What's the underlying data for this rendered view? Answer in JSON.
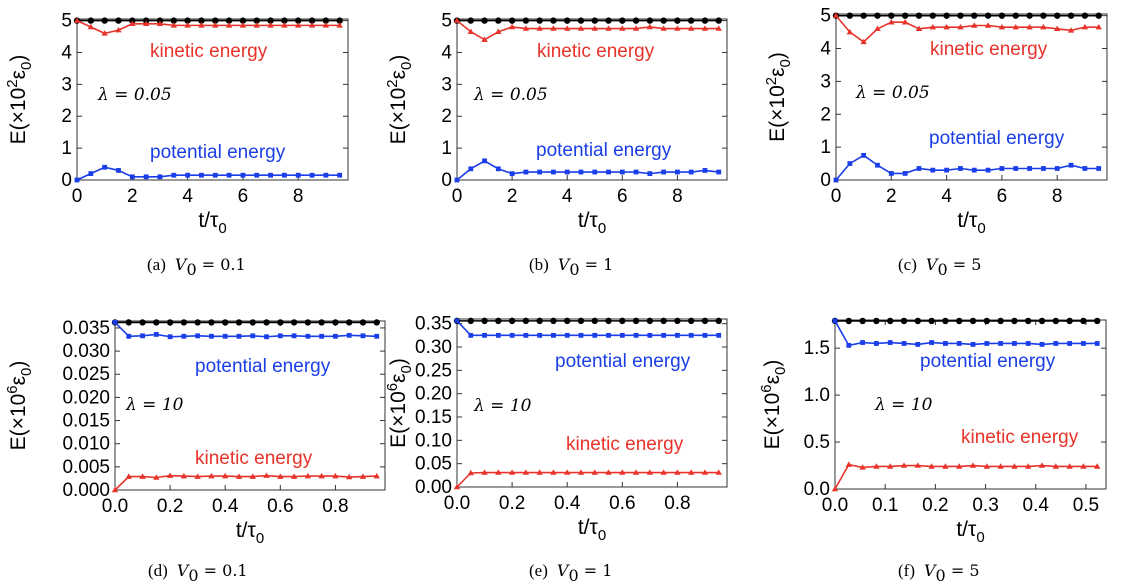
{
  "chart_data": [
    {
      "type": "line",
      "caption": {
        "label": "(a)",
        "var": "V",
        "sub": "0",
        "rest": " = 0.1"
      },
      "xlabel": {
        "main": "t/τ",
        "sub": "0"
      },
      "ylabel": {
        "main": "E(×10",
        "sup": "2",
        "eps": "ε",
        "sub": "0",
        "close": ")"
      },
      "xlim": [
        0,
        9.8
      ],
      "ylim": [
        0,
        5.05
      ],
      "xticks": [
        0,
        2,
        4,
        6,
        8
      ],
      "xtick_labels": [
        "0",
        "2",
        "4",
        "6",
        "8"
      ],
      "yticks": [
        0,
        1,
        2,
        3,
        4,
        5
      ],
      "ytick_labels": [
        "0",
        "1",
        "2",
        "3",
        "4",
        "5"
      ],
      "lambda_label": "λ = 0.05",
      "x": [
        0,
        0.5,
        1,
        1.5,
        2,
        2.5,
        3,
        3.5,
        4,
        4.5,
        5,
        5.5,
        6,
        6.5,
        7,
        7.5,
        8,
        8.5,
        9,
        9.5
      ],
      "series": [
        {
          "name": "",
          "color": "#000000",
          "marker": "circle",
          "values": [
            5,
            5,
            5,
            5,
            5,
            5,
            5,
            5,
            5,
            5,
            5,
            5,
            5,
            5,
            5,
            5,
            5,
            5,
            5,
            5
          ]
        },
        {
          "name": "kinetic energy",
          "color": "#e8332a",
          "marker": "triangle",
          "values": [
            5.0,
            4.8,
            4.6,
            4.7,
            4.9,
            4.9,
            4.9,
            4.85,
            4.85,
            4.85,
            4.85,
            4.85,
            4.85,
            4.85,
            4.85,
            4.85,
            4.85,
            4.85,
            4.85,
            4.85
          ]
        },
        {
          "name": "potential energy",
          "color": "#1a3ee8",
          "marker": "square",
          "values": [
            0.0,
            0.2,
            0.4,
            0.3,
            0.1,
            0.1,
            0.1,
            0.15,
            0.15,
            0.15,
            0.15,
            0.15,
            0.15,
            0.15,
            0.15,
            0.15,
            0.15,
            0.15,
            0.15,
            0.15
          ]
        }
      ]
    },
    {
      "type": "line",
      "caption": {
        "label": "(b)",
        "var": "V",
        "sub": "0",
        "rest": " = 1"
      },
      "xlabel": {
        "main": "t/τ",
        "sub": "0"
      },
      "ylabel": {
        "main": "E(×10",
        "sup": "2",
        "eps": "ε",
        "sub": "0",
        "close": ")"
      },
      "xlim": [
        0,
        9.8
      ],
      "ylim": [
        0,
        5.05
      ],
      "xticks": [
        0,
        2,
        4,
        6,
        8
      ],
      "xtick_labels": [
        "0",
        "2",
        "4",
        "6",
        "8"
      ],
      "yticks": [
        0,
        1,
        2,
        3,
        4,
        5
      ],
      "ytick_labels": [
        "0",
        "1",
        "2",
        "3",
        "4",
        "5"
      ],
      "lambda_label": "λ = 0.05",
      "x": [
        0,
        0.5,
        1,
        1.5,
        2,
        2.5,
        3,
        3.5,
        4,
        4.5,
        5,
        5.5,
        6,
        6.5,
        7,
        7.5,
        8,
        8.5,
        9,
        9.5
      ],
      "series": [
        {
          "name": "",
          "color": "#000000",
          "marker": "circle",
          "values": [
            5,
            5,
            5,
            5,
            5,
            5,
            5,
            5,
            5,
            5,
            5,
            5,
            5,
            5,
            5,
            5,
            5,
            5,
            5,
            5
          ]
        },
        {
          "name": "kinetic energy",
          "color": "#e8332a",
          "marker": "triangle",
          "values": [
            5.0,
            4.65,
            4.4,
            4.65,
            4.8,
            4.75,
            4.75,
            4.75,
            4.75,
            4.75,
            4.75,
            4.75,
            4.75,
            4.75,
            4.8,
            4.75,
            4.75,
            4.75,
            4.75,
            4.75
          ]
        },
        {
          "name": "potential energy",
          "color": "#1a3ee8",
          "marker": "square",
          "values": [
            0.0,
            0.35,
            0.6,
            0.35,
            0.2,
            0.25,
            0.25,
            0.25,
            0.25,
            0.25,
            0.25,
            0.25,
            0.25,
            0.25,
            0.2,
            0.25,
            0.25,
            0.25,
            0.3,
            0.25
          ]
        }
      ]
    },
    {
      "type": "line",
      "caption": {
        "label": "(c)",
        "var": "V",
        "sub": "0",
        "rest": " = 5"
      },
      "xlabel": {
        "main": "t/τ",
        "sub": "0"
      },
      "ylabel": {
        "main": "E(×10",
        "sup": "2",
        "eps": "ε",
        "sub": "0",
        "close": ")"
      },
      "xlim": [
        0,
        9.8
      ],
      "ylim": [
        0,
        5.05
      ],
      "xticks": [
        0,
        2,
        4,
        6,
        8
      ],
      "xtick_labels": [
        "0",
        "2",
        "4",
        "6",
        "8"
      ],
      "yticks": [
        0,
        1,
        2,
        3,
        4,
        5
      ],
      "ytick_labels": [
        "0",
        "1",
        "2",
        "3",
        "4",
        "5"
      ],
      "lambda_label": "λ = 0.05",
      "x": [
        0,
        0.5,
        1,
        1.5,
        2,
        2.5,
        3,
        3.5,
        4,
        4.5,
        5,
        5.5,
        6,
        6.5,
        7,
        7.5,
        8,
        8.5,
        9,
        9.5
      ],
      "series": [
        {
          "name": "",
          "color": "#000000",
          "marker": "circle",
          "values": [
            5,
            5,
            5,
            5,
            5,
            5,
            5,
            5,
            5,
            5,
            5,
            5,
            5,
            5,
            5,
            5,
            5,
            5,
            5,
            5
          ]
        },
        {
          "name": "kinetic energy",
          "color": "#e8332a",
          "marker": "triangle",
          "values": [
            5.0,
            4.5,
            4.2,
            4.6,
            4.8,
            4.8,
            4.6,
            4.65,
            4.65,
            4.65,
            4.7,
            4.7,
            4.65,
            4.65,
            4.65,
            4.65,
            4.6,
            4.55,
            4.65,
            4.65
          ]
        },
        {
          "name": "potential energy",
          "color": "#1a3ee8",
          "marker": "square",
          "values": [
            0.0,
            0.5,
            0.75,
            0.45,
            0.2,
            0.2,
            0.35,
            0.3,
            0.3,
            0.35,
            0.3,
            0.3,
            0.35,
            0.35,
            0.35,
            0.35,
            0.35,
            0.45,
            0.35,
            0.35
          ]
        }
      ]
    },
    {
      "type": "line",
      "caption": {
        "label": "(d)",
        "var": "V",
        "sub": "0",
        "rest": " = 0.1"
      },
      "xlabel": {
        "main": "t/τ",
        "sub": "0"
      },
      "ylabel": {
        "main": "E(×10",
        "sup": "6",
        "eps": "ε",
        "sub": "0",
        "close": ")"
      },
      "xlim": [
        0,
        0.98
      ],
      "ylim": [
        0,
        0.0365
      ],
      "xticks": [
        0,
        0.2,
        0.4,
        0.6,
        0.8
      ],
      "xtick_labels": [
        "0.0",
        "0.2",
        "0.4",
        "0.6",
        "0.8"
      ],
      "yticks": [
        0,
        0.005,
        0.01,
        0.015,
        0.02,
        0.025,
        0.03,
        0.035
      ],
      "ytick_labels": [
        "0.000",
        "0.005",
        "0.010",
        "0.015",
        "0.020",
        "0.025",
        "0.030",
        "0.035"
      ],
      "lambda_label": "λ = 10",
      "x": [
        0,
        0.05,
        0.1,
        0.15,
        0.2,
        0.25,
        0.3,
        0.35,
        0.4,
        0.45,
        0.5,
        0.55,
        0.6,
        0.65,
        0.7,
        0.75,
        0.8,
        0.85,
        0.9,
        0.95
      ],
      "series": [
        {
          "name": "",
          "color": "#000000",
          "marker": "circle",
          "values": [
            0.0362,
            0.0362,
            0.0362,
            0.0362,
            0.0362,
            0.0362,
            0.0362,
            0.0362,
            0.0362,
            0.0362,
            0.0362,
            0.0362,
            0.0362,
            0.0362,
            0.0362,
            0.0362,
            0.0362,
            0.0362,
            0.0362,
            0.0362
          ]
        },
        {
          "name": "potential energy",
          "color": "#1a3ee8",
          "marker": "square",
          "values": [
            0.0362,
            0.0332,
            0.0333,
            0.0336,
            0.0331,
            0.0332,
            0.0333,
            0.0332,
            0.0332,
            0.0332,
            0.0333,
            0.0331,
            0.0333,
            0.0333,
            0.0332,
            0.0332,
            0.0332,
            0.0334,
            0.0333,
            0.0332
          ]
        },
        {
          "name": "kinetic energy",
          "color": "#e8332a",
          "marker": "triangle",
          "values": [
            0.0,
            0.0029,
            0.0029,
            0.0027,
            0.0031,
            0.003,
            0.0029,
            0.003,
            0.003,
            0.0029,
            0.0029,
            0.0031,
            0.0029,
            0.0029,
            0.003,
            0.003,
            0.003,
            0.0028,
            0.0029,
            0.003
          ]
        }
      ]
    },
    {
      "type": "line",
      "caption": {
        "label": "(e)",
        "var": "V",
        "sub": "0",
        "rest": " = 1"
      },
      "xlabel": {
        "main": "t/τ",
        "sub": "0"
      },
      "ylabel": {
        "main": "E(×10",
        "sup": "6",
        "eps": "ε",
        "sub": "0",
        "close": ")"
      },
      "xlim": [
        0,
        0.98
      ],
      "ylim": [
        0,
        0.36
      ],
      "xticks": [
        0,
        0.2,
        0.4,
        0.6,
        0.8
      ],
      "xtick_labels": [
        "0.0",
        "0.2",
        "0.4",
        "0.6",
        "0.8"
      ],
      "yticks": [
        0,
        0.05,
        0.1,
        0.15,
        0.2,
        0.25,
        0.3,
        0.35
      ],
      "ytick_labels": [
        "0.00",
        "0.05",
        "0.10",
        "0.15",
        "0.20",
        "0.25",
        "0.30",
        "0.35"
      ],
      "lambda_label": "λ = 10",
      "x": [
        0,
        0.05,
        0.1,
        0.15,
        0.2,
        0.25,
        0.3,
        0.35,
        0.4,
        0.45,
        0.5,
        0.55,
        0.6,
        0.65,
        0.7,
        0.75,
        0.8,
        0.85,
        0.9,
        0.95
      ],
      "series": [
        {
          "name": "",
          "color": "#000000",
          "marker": "circle",
          "values": [
            0.356,
            0.356,
            0.356,
            0.356,
            0.356,
            0.356,
            0.356,
            0.356,
            0.356,
            0.356,
            0.356,
            0.356,
            0.356,
            0.356,
            0.356,
            0.356,
            0.356,
            0.356,
            0.356,
            0.356
          ]
        },
        {
          "name": "potential energy",
          "color": "#1a3ee8",
          "marker": "square",
          "values": [
            0.356,
            0.325,
            0.325,
            0.325,
            0.325,
            0.325,
            0.325,
            0.325,
            0.325,
            0.325,
            0.325,
            0.325,
            0.325,
            0.325,
            0.325,
            0.325,
            0.325,
            0.325,
            0.325,
            0.325
          ]
        },
        {
          "name": "kinetic energy",
          "color": "#e8332a",
          "marker": "triangle",
          "values": [
            0.0,
            0.03,
            0.031,
            0.031,
            0.031,
            0.031,
            0.031,
            0.031,
            0.031,
            0.031,
            0.031,
            0.031,
            0.031,
            0.031,
            0.031,
            0.031,
            0.031,
            0.031,
            0.031,
            0.031
          ]
        }
      ]
    },
    {
      "type": "line",
      "caption": {
        "label": "(f)",
        "var": "V",
        "sub": "0",
        "rest": " = 5"
      },
      "xlabel": {
        "main": "t/τ",
        "sub": "0"
      },
      "ylabel": {
        "main": "E(×10",
        "sup": "6",
        "eps": "ε",
        "sub": "0",
        "close": ")"
      },
      "xlim": [
        0,
        0.54
      ],
      "ylim": [
        0,
        1.8
      ],
      "xticks": [
        0,
        0.1,
        0.2,
        0.3,
        0.4,
        0.5
      ],
      "xtick_labels": [
        "0.0",
        "0.1",
        "0.2",
        "0.3",
        "0.4",
        "0.5"
      ],
      "yticks": [
        0,
        0.5,
        1.0,
        1.5
      ],
      "ytick_labels": [
        "0.0",
        "0.5",
        "1.0",
        "1.5"
      ],
      "lambda_label": "λ = 10",
      "x": [
        0.0,
        0.0275,
        0.055,
        0.0825,
        0.11,
        0.1375,
        0.165,
        0.1925,
        0.22,
        0.2475,
        0.275,
        0.3025,
        0.33,
        0.3575,
        0.385,
        0.4125,
        0.44,
        0.4675,
        0.495,
        0.5225
      ],
      "series": [
        {
          "name": "",
          "color": "#000000",
          "marker": "circle",
          "values": [
            1.79,
            1.79,
            1.79,
            1.79,
            1.79,
            1.79,
            1.79,
            1.79,
            1.79,
            1.79,
            1.79,
            1.79,
            1.79,
            1.79,
            1.79,
            1.79,
            1.79,
            1.79,
            1.79,
            1.79
          ]
        },
        {
          "name": "potential energy",
          "color": "#1a3ee8",
          "marker": "square",
          "values": [
            1.79,
            1.53,
            1.56,
            1.55,
            1.56,
            1.55,
            1.54,
            1.56,
            1.55,
            1.55,
            1.54,
            1.55,
            1.55,
            1.55,
            1.55,
            1.54,
            1.55,
            1.55,
            1.55,
            1.55
          ]
        },
        {
          "name": "kinetic energy",
          "color": "#e8332a",
          "marker": "triangle",
          "values": [
            0.0,
            0.26,
            0.23,
            0.24,
            0.24,
            0.25,
            0.25,
            0.24,
            0.24,
            0.24,
            0.25,
            0.24,
            0.24,
            0.24,
            0.24,
            0.25,
            0.24,
            0.24,
            0.24,
            0.24
          ]
        }
      ]
    }
  ]
}
